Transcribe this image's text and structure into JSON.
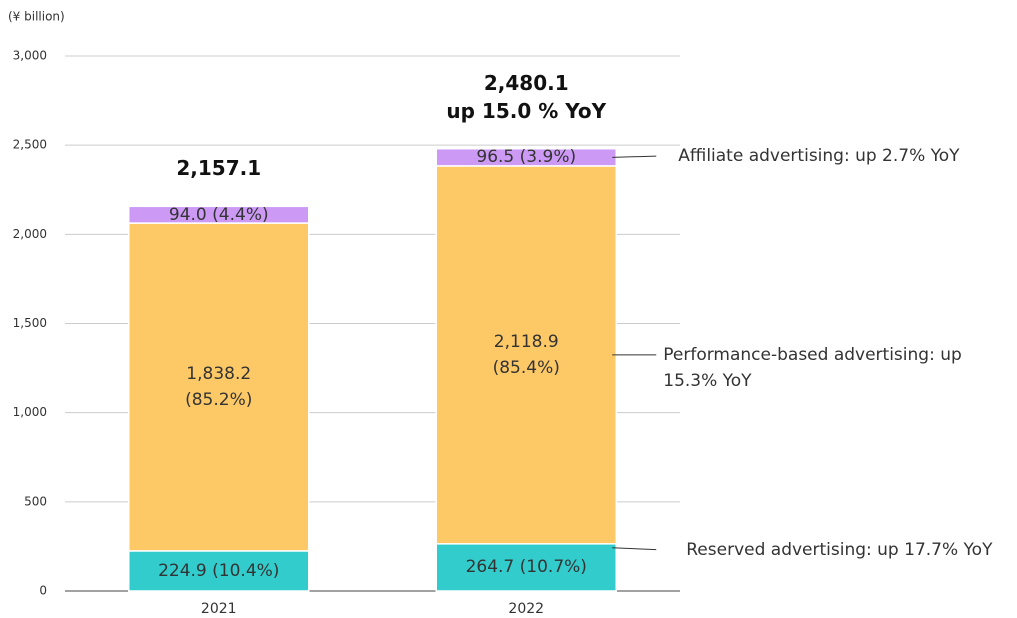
{
  "chart_data": {
    "type": "bar",
    "stacked": true,
    "y_axis_label": "(¥ billion)",
    "categories": [
      "2021",
      "2022"
    ],
    "series": [
      {
        "name": "Reserved advertising: up 17.7% YoY",
        "color": "#33cccc",
        "values": [
          224.9,
          264.7
        ],
        "value_labels": [
          "224.9 (10.4%)",
          "264.7 (10.7%)"
        ]
      },
      {
        "name": "Performance-based advertising: up 15.3% YoY",
        "color": "#fdc966",
        "values": [
          1838.2,
          2118.9
        ],
        "value_labels": [
          "1,838.2 (85.2%)",
          "2,118.9 (85.4%)"
        ]
      },
      {
        "name": "Affiliate advertising: up 2.7% YoY",
        "color": "#cc99f5",
        "values": [
          94.0,
          96.5
        ],
        "value_labels": [
          "94.0 (4.4%)",
          "96.5 (3.9%)"
        ]
      }
    ],
    "totals": [
      2157.1,
      2480.1
    ],
    "total_labels": [
      "2,157.1",
      "2,480.1"
    ],
    "annotation": "up 15.0 % YoY",
    "ylim": [
      0,
      3000
    ],
    "yticks": [
      0,
      500,
      {
        "value": 1000,
        "label": "1,000"
      },
      {
        "value": 1500,
        "label": "1,500"
      },
      {
        "value": 2000,
        "label": "2,000"
      },
      {
        "value": 2500,
        "label": "2,500"
      },
      {
        "value": 3000,
        "label": "3,000"
      }
    ],
    "grid": true
  }
}
